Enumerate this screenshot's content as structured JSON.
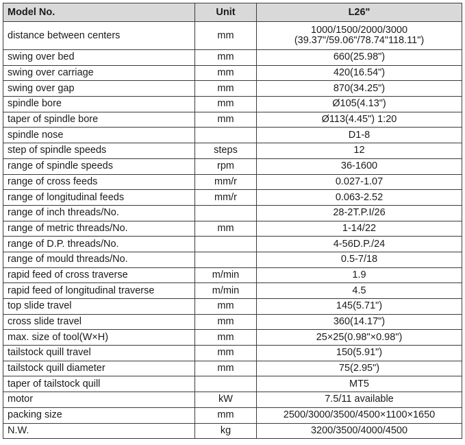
{
  "header": {
    "name": "Model No.",
    "unit": "Unit",
    "value": "L26\""
  },
  "rows": [
    {
      "name": "distance between centers",
      "unit": "mm",
      "value": "1000/1500/2000/3000",
      "value2": "(39.37\"/59.06\"/78.74\"118.11\")"
    },
    {
      "name": "swing over bed",
      "unit": "mm",
      "value": "660(25.98\")"
    },
    {
      "name": "swing over carriage",
      "unit": "mm",
      "value": "420(16.54\")"
    },
    {
      "name": "swing over gap",
      "unit": "mm",
      "value": "870(34.25\")"
    },
    {
      "name": "spindle bore",
      "unit": "mm",
      "value": "Ø105(4.13\")"
    },
    {
      "name": "taper of spindle bore",
      "unit": "mm",
      "value": "Ø113(4.45\") 1:20"
    },
    {
      "name": "spindle nose",
      "unit": "",
      "value": "D1-8"
    },
    {
      "name": "step of spindle speeds",
      "unit": "steps",
      "value": "12"
    },
    {
      "name": "range of spindle speeds",
      "unit": "rpm",
      "value": "36-1600"
    },
    {
      "name": "range of cross feeds",
      "unit": "mm/r",
      "value": "0.027-1.07"
    },
    {
      "name": "range of longitudinal feeds",
      "unit": "mm/r",
      "value": "0.063-2.52"
    },
    {
      "name": "range of inch threads/No.",
      "unit": "",
      "value": "28-2T.P.I/26"
    },
    {
      "name": "range of metric threads/No.",
      "unit": "mm",
      "value": "1-14/22"
    },
    {
      "name": "range of D.P. threads/No.",
      "unit": "",
      "value": "4-56D.P./24"
    },
    {
      "name": "range of mould threads/No.",
      "unit": "",
      "value": "0.5-7/18"
    },
    {
      "name": "rapid feed of cross traverse",
      "unit": "m/min",
      "value": "1.9"
    },
    {
      "name": "rapid feed of longitudinal traverse",
      "unit": "m/min",
      "value": "4.5"
    },
    {
      "name": "top slide travel",
      "unit": "mm",
      "value": "145(5.71\")"
    },
    {
      "name": "cross slide travel",
      "unit": "mm",
      "value": "360(14.17\")"
    },
    {
      "name": "max. size of tool(W×H)",
      "unit": "mm",
      "value": "25×25(0.98\"×0.98\")"
    },
    {
      "name": "tailstock quill travel",
      "unit": "mm",
      "value": "150(5.91\")"
    },
    {
      "name": "tailstock quill diameter",
      "unit": "mm",
      "value": "75(2.95\")"
    },
    {
      "name": "taper of tailstock quill",
      "unit": "",
      "value": "MT5"
    },
    {
      "name": "motor",
      "unit": "kW",
      "value": "7.5/11 available"
    },
    {
      "name": "packing size",
      "unit": "mm",
      "value": "2500/3000/3500/4500×1100×1650"
    },
    {
      "name": "N.W.",
      "unit": "kg",
      "value": "3200/3500/4000/4500"
    }
  ]
}
